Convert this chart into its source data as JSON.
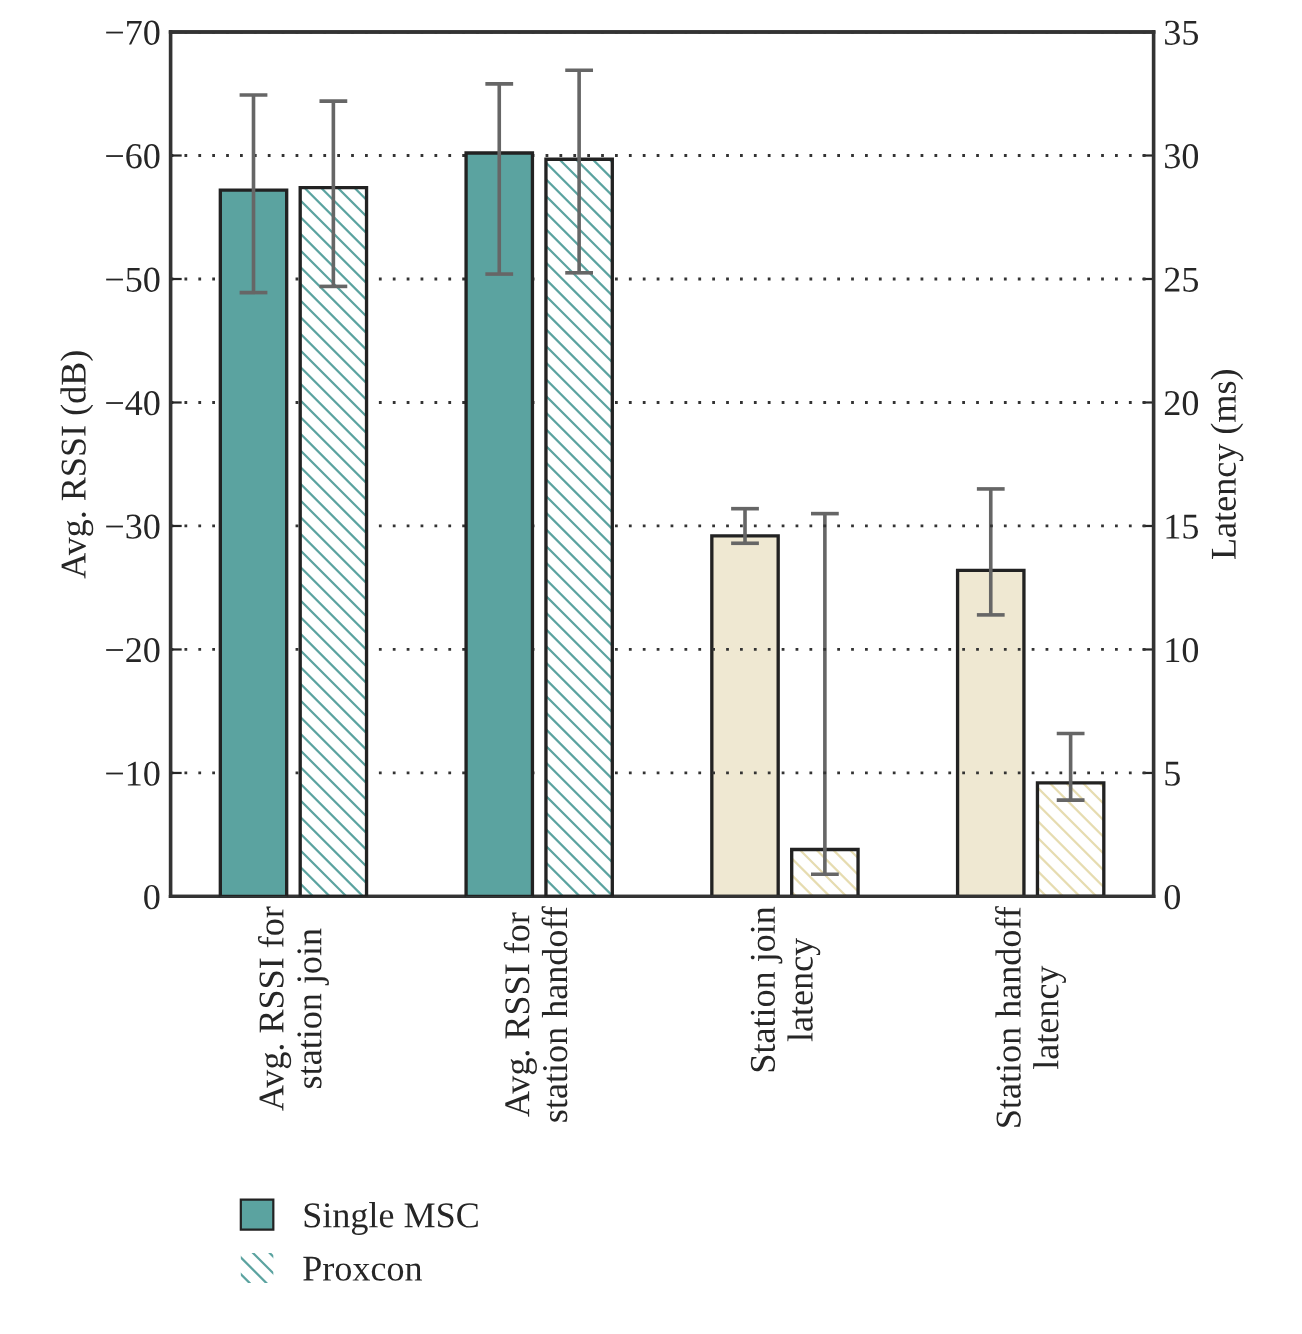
{
  "chart_data": {
    "type": "bar",
    "ylabel": "Avg. RSSI (dB)",
    "y2label": "Latency (ms)",
    "categories": [
      "Avg. RSSI for\nstation join",
      "Avg. RSSI for\nstation handoff",
      "Station join\nlatency",
      "Station handoff\nlatency"
    ],
    "series": [
      {
        "name": "Single MSC",
        "color": "#5ba3a0",
        "values": [
          -57.2,
          -60.2,
          null,
          null
        ],
        "errors": [
          [
            -64.9,
            -48.9
          ],
          [
            -65.8,
            -50.4
          ],
          null,
          null
        ]
      },
      {
        "name": "Proxcon",
        "color": "#5ba3a0",
        "values": [
          -57.4,
          -59.7,
          null,
          null
        ],
        "errors": [
          [
            -64.4,
            -49.4
          ],
          [
            -66.9,
            -50.5
          ],
          null,
          null
        ]
      },
      {
        "color": "#efe8d2",
        "axis": "y2",
        "values": [
          null,
          null,
          14.6,
          13.2
        ],
        "errors": [
          null,
          null,
          [
            14.3,
            15.7
          ],
          [
            11.4,
            16.5
          ]
        ]
      },
      {
        "color": "#e6dcb0",
        "axis": "y2",
        "values": [
          null,
          null,
          1.9,
          4.6
        ],
        "errors": [
          null,
          null,
          [
            0.9,
            15.5
          ],
          [
            3.9,
            6.6
          ]
        ]
      }
    ],
    "ylim": [
      0,
      -70
    ],
    "yticks": [
      {
        "value": -70,
        "label": "−70"
      },
      {
        "value": -60,
        "label": "−60"
      },
      {
        "value": -50,
        "label": "−50"
      },
      {
        "value": -40,
        "label": "−40"
      },
      {
        "value": -30,
        "label": "−30"
      },
      {
        "value": -20,
        "label": "−20"
      },
      {
        "value": -10,
        "label": "−10"
      },
      0
    ],
    "y2lim": [
      0,
      35
    ],
    "y2ticks": [
      0,
      5,
      10,
      15,
      20,
      25,
      30,
      35
    ],
    "grid": "y",
    "legend": "bottom left"
  }
}
